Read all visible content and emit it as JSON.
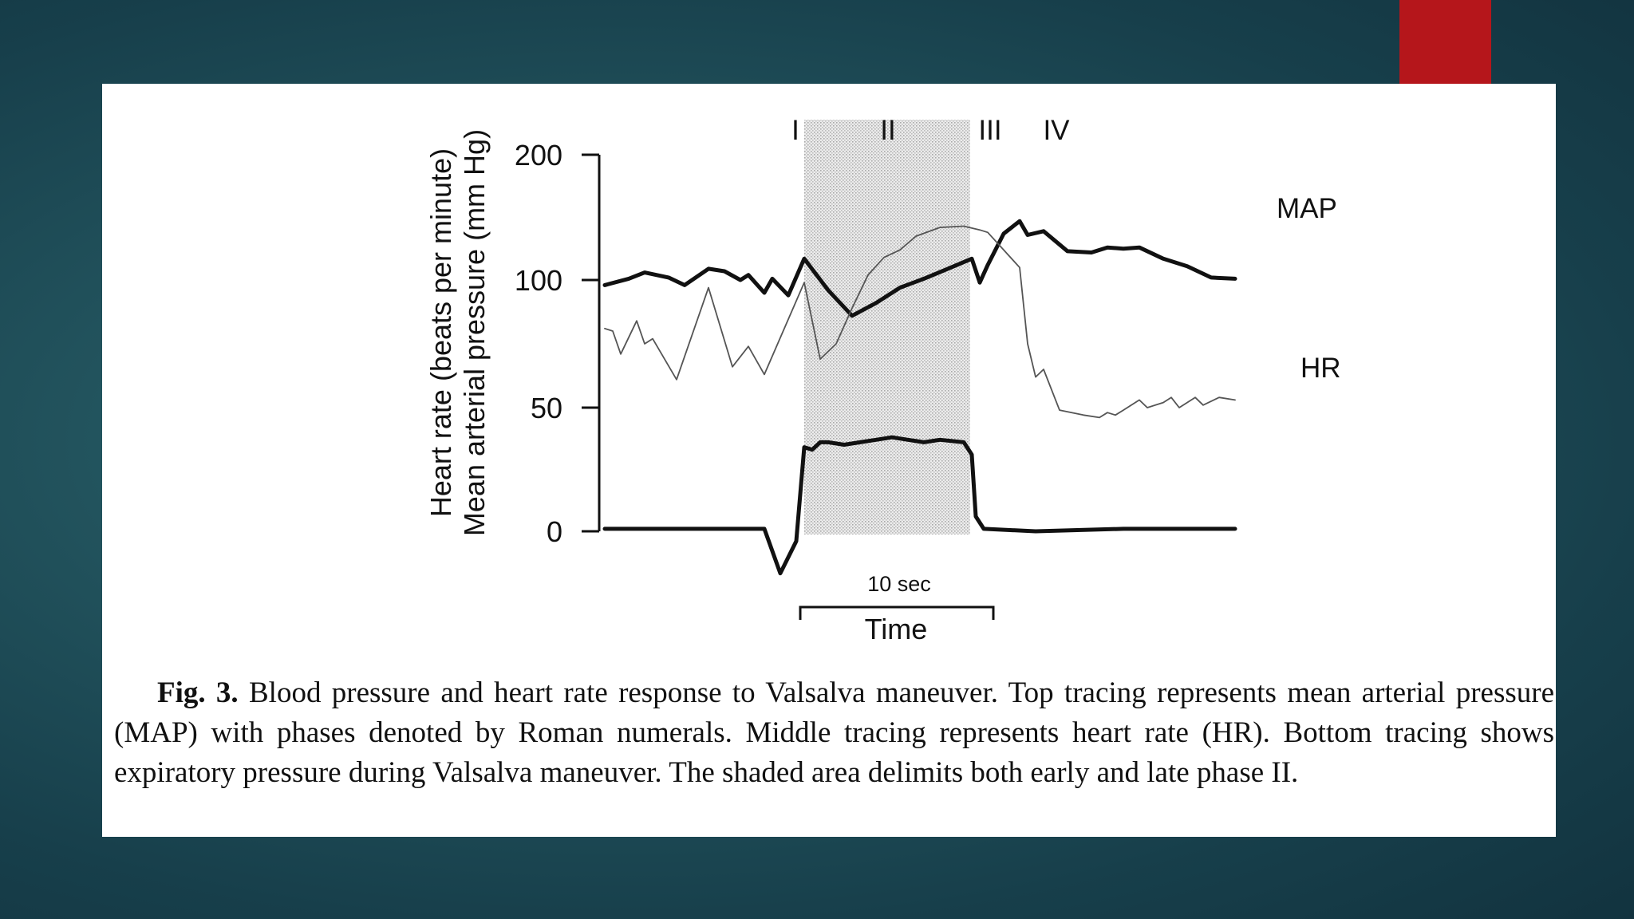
{
  "chart_data": {
    "type": "line",
    "y_axis_title_line1": "Heart rate (beats per minute)",
    "y_axis_title_line2": "Mean arterial pressure (mm Hg)",
    "y_ticks": [
      {
        "value": 0,
        "label": "0"
      },
      {
        "value": 50,
        "label": "50"
      },
      {
        "value": 100,
        "label": "100"
      },
      {
        "value": 200,
        "label": "200"
      }
    ],
    "phases": [
      "I",
      "II",
      "III",
      "IV"
    ],
    "shaded_region_label": "early and late phase II",
    "time_scale_label": "10 sec",
    "x_axis_title": "Time",
    "series": [
      {
        "name": "MAP",
        "label": "MAP",
        "style": "thick",
        "points": [
          [
            0,
            98
          ],
          [
            3,
            101
          ],
          [
            5,
            106
          ],
          [
            8,
            102
          ],
          [
            10,
            98
          ],
          [
            13,
            109
          ],
          [
            15,
            107
          ],
          [
            17,
            100
          ],
          [
            18,
            104
          ],
          [
            20,
            95
          ],
          [
            21,
            101
          ],
          [
            23,
            94
          ],
          [
            25,
            117
          ],
          [
            28,
            96
          ],
          [
            31,
            86
          ],
          [
            34,
            91
          ],
          [
            37,
            97
          ],
          [
            40,
            101
          ],
          [
            43,
            109
          ],
          [
            46,
            117
          ],
          [
            47,
            99
          ],
          [
            48,
            112
          ],
          [
            50,
            137
          ],
          [
            52,
            147
          ],
          [
            53,
            136
          ],
          [
            55,
            139
          ],
          [
            58,
            123
          ],
          [
            61,
            122
          ],
          [
            63,
            126
          ],
          [
            65,
            125
          ],
          [
            67,
            126
          ],
          [
            70,
            117
          ],
          [
            73,
            111
          ],
          [
            76,
            102
          ],
          [
            79,
            101
          ]
        ]
      },
      {
        "name": "HR",
        "label": "HR",
        "style": "thin",
        "points": [
          [
            0,
            81
          ],
          [
            1,
            80
          ],
          [
            2,
            71
          ],
          [
            4,
            84
          ],
          [
            5,
            75
          ],
          [
            6,
            77
          ],
          [
            9,
            61
          ],
          [
            13,
            97
          ],
          [
            16,
            66
          ],
          [
            18,
            74
          ],
          [
            20,
            63
          ],
          [
            25,
            99
          ],
          [
            27,
            69
          ],
          [
            29,
            75
          ],
          [
            31,
            89
          ],
          [
            33,
            104
          ],
          [
            35,
            118
          ],
          [
            37,
            124
          ],
          [
            39,
            135
          ],
          [
            42,
            142
          ],
          [
            45,
            143
          ],
          [
            47,
            140
          ],
          [
            48,
            138
          ],
          [
            52,
            110
          ],
          [
            53,
            75
          ],
          [
            54,
            62
          ],
          [
            55,
            65
          ],
          [
            57,
            49
          ],
          [
            60,
            47
          ],
          [
            62,
            46
          ],
          [
            63,
            48
          ],
          [
            64,
            47
          ],
          [
            65,
            49
          ],
          [
            67,
            53
          ],
          [
            68,
            50
          ],
          [
            70,
            52
          ],
          [
            71,
            54
          ],
          [
            72,
            50
          ],
          [
            74,
            54
          ],
          [
            75,
            51
          ],
          [
            77,
            54
          ],
          [
            79,
            53
          ]
        ]
      },
      {
        "name": "Expiratory pressure",
        "label": "",
        "style": "thick",
        "points": [
          [
            0,
            1
          ],
          [
            20,
            1
          ],
          [
            22,
            -17
          ],
          [
            24,
            -4
          ],
          [
            25,
            34
          ],
          [
            26,
            33
          ],
          [
            27,
            36
          ],
          [
            28,
            36
          ],
          [
            30,
            35
          ],
          [
            32,
            36
          ],
          [
            34,
            37
          ],
          [
            36,
            38
          ],
          [
            38,
            37
          ],
          [
            40,
            36
          ],
          [
            42,
            37
          ],
          [
            45,
            36
          ],
          [
            46,
            31
          ],
          [
            46.5,
            6
          ],
          [
            47.5,
            1
          ],
          [
            54,
            0
          ],
          [
            65,
            1
          ],
          [
            79,
            1
          ]
        ]
      }
    ]
  },
  "caption": {
    "lead": "Fig. 3.",
    "text": "Blood pressure and heart rate response to Valsalva maneuver. Top tracing represents mean arterial pressure (MAP) with phases denoted by Roman numerals. Middle tracing represents heart rate (HR). Bottom tracing shows expiratory pressure during Valsalva maneuver. The shaded area delimits both early and late phase II."
  },
  "colors": {
    "background": "#1e4f5a",
    "accent": "#b5161b",
    "panel": "#ffffff",
    "ink": "#111111",
    "shade": "#dcdcdc"
  }
}
